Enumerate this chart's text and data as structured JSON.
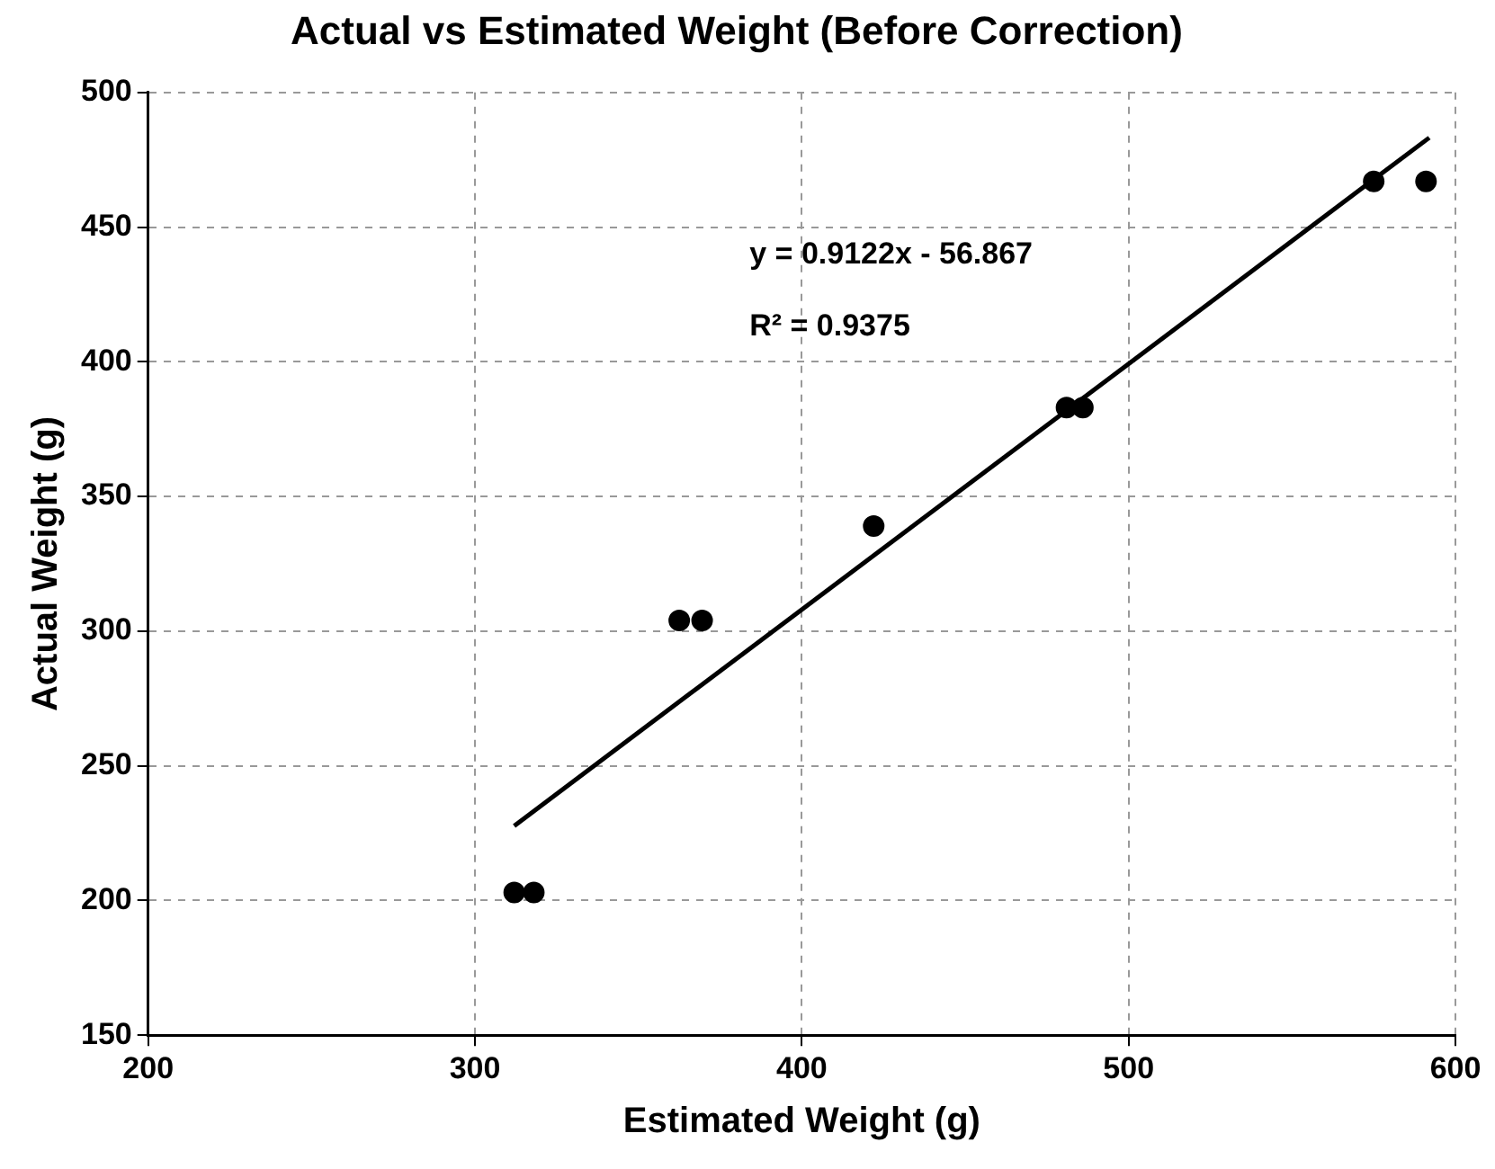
{
  "chart_data": {
    "type": "scatter",
    "title": "Actual vs Estimated Weight (Before Correction)",
    "xlabel": "Estimated Weight (g)",
    "ylabel": "Actual Weight (g)",
    "series": [
      {
        "marker": "circle",
        "color": "#000000",
        "x": [
          312,
          318,
          362.5,
          369.5,
          422,
          481,
          486,
          575,
          591
        ],
        "values": [
          203,
          203,
          304,
          304,
          339,
          383,
          383,
          467,
          467
        ]
      },
      {
        "type": "line",
        "marker": "none",
        "color": "#000000",
        "x": [
          312,
          592
        ],
        "values": [
          227.7,
          483.2
        ]
      }
    ],
    "xlim": [
      200,
      600
    ],
    "xticks": [
      200,
      300,
      400,
      500,
      600
    ],
    "ylim": [
      150,
      500
    ],
    "yticks": [
      150,
      200,
      250,
      300,
      350,
      400,
      450,
      500
    ],
    "grid": true,
    "legend": false,
    "annotations": [
      "y = 0.9122x - 56.867",
      "R² = 0.9375"
    ]
  }
}
